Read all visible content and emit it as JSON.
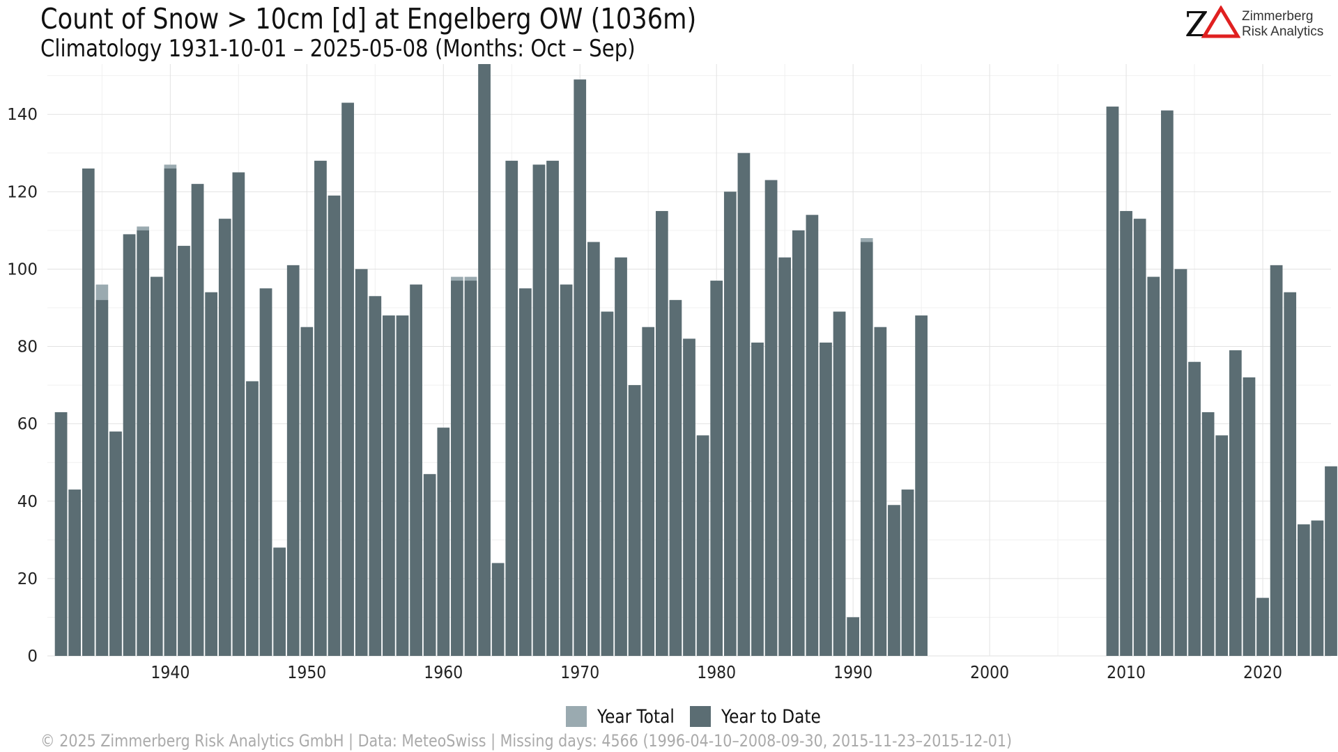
{
  "title": "Count of Snow > 10cm [d] at Engelberg  OW (1036m)",
  "subtitle": "Climatology 1931-10-01 – 2025-05-08 (Months: Oct – Sep)",
  "logo": {
    "mark": "ZΔ",
    "line1": "Zimmerberg",
    "line2": "Risk Analytics"
  },
  "footer": "©  2025 Zimmerberg Risk Analytics GmbH | Data: MeteoSwiss | Missing days: 4566 (1996-04-10–2008-09-30, 2015-11-23–2015-12-01)",
  "legend": [
    {
      "label": "Year Total",
      "color": "#9aaab0"
    },
    {
      "label": "Year to Date",
      "color": "#5b6d73"
    }
  ],
  "chart_data": {
    "type": "bar",
    "stacked_overlay": true,
    "xlim": [
      1931,
      2025
    ],
    "ylim": [
      0,
      153
    ],
    "x_ticks": [
      1940,
      1950,
      1960,
      1970,
      1980,
      1990,
      2000,
      2010,
      2020
    ],
    "y_ticks": [
      0,
      20,
      40,
      60,
      80,
      100,
      120,
      140
    ],
    "grid": true,
    "legend_position": "bottom",
    "x": [
      1932,
      1933,
      1934,
      1935,
      1936,
      1937,
      1938,
      1939,
      1940,
      1941,
      1942,
      1943,
      1944,
      1945,
      1946,
      1947,
      1948,
      1949,
      1950,
      1951,
      1952,
      1953,
      1954,
      1955,
      1956,
      1957,
      1958,
      1959,
      1960,
      1961,
      1962,
      1963,
      1964,
      1965,
      1966,
      1967,
      1968,
      1969,
      1970,
      1971,
      1972,
      1973,
      1974,
      1975,
      1976,
      1977,
      1978,
      1979,
      1980,
      1981,
      1982,
      1983,
      1984,
      1985,
      1986,
      1987,
      1988,
      1989,
      1990,
      1991,
      1992,
      1993,
      1994,
      1995,
      2009,
      2010,
      2011,
      2012,
      2013,
      2014,
      2015,
      2016,
      2017,
      2018,
      2019,
      2020,
      2021,
      2022,
      2023,
      2024,
      2025
    ],
    "series": [
      {
        "name": "Year Total",
        "color": "#9aaab0",
        "values": [
          63,
          43,
          126,
          96,
          58,
          109,
          111,
          98,
          127,
          106,
          122,
          94,
          113,
          125,
          71,
          95,
          28,
          101,
          85,
          128,
          119,
          143,
          100,
          93,
          88,
          88,
          96,
          47,
          59,
          98,
          98,
          153,
          24,
          128,
          95,
          127,
          128,
          96,
          149,
          107,
          89,
          103,
          70,
          85,
          115,
          92,
          82,
          57,
          97,
          120,
          130,
          81,
          123,
          103,
          110,
          114,
          81,
          89,
          10,
          108,
          85,
          39,
          43,
          88,
          142,
          115,
          113,
          98,
          141,
          100,
          76,
          63,
          57,
          79,
          72,
          15,
          101,
          94,
          34,
          35,
          49
        ]
      },
      {
        "name": "Year to Date",
        "color": "#5b6d73",
        "values": [
          63,
          43,
          126,
          92,
          58,
          109,
          110,
          98,
          126,
          106,
          122,
          94,
          113,
          125,
          71,
          95,
          28,
          101,
          85,
          128,
          119,
          143,
          100,
          93,
          88,
          88,
          96,
          47,
          59,
          97,
          97,
          153,
          24,
          128,
          95,
          127,
          128,
          96,
          149,
          107,
          89,
          103,
          70,
          85,
          115,
          92,
          82,
          57,
          97,
          120,
          130,
          81,
          123,
          103,
          110,
          114,
          81,
          89,
          10,
          107,
          85,
          39,
          43,
          88,
          142,
          115,
          113,
          98,
          141,
          100,
          76,
          63,
          57,
          79,
          72,
          15,
          101,
          94,
          34,
          35,
          49
        ]
      }
    ]
  }
}
